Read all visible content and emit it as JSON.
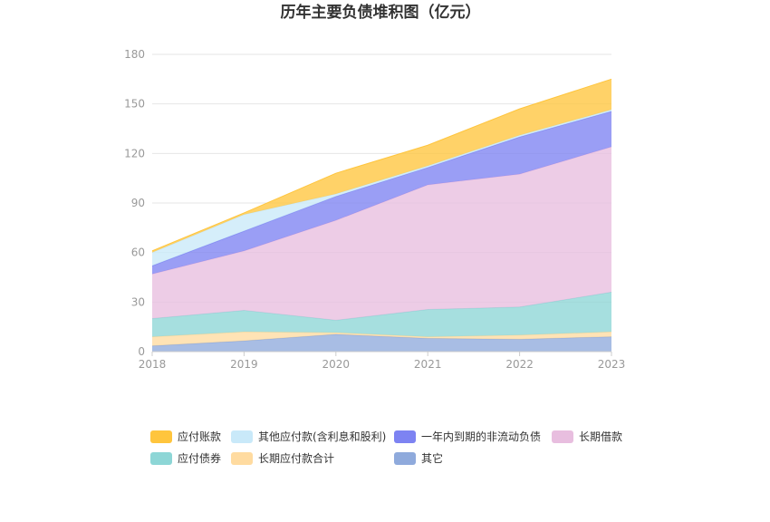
{
  "chart_data": {
    "type": "area",
    "stacked": true,
    "title": "历年主要负债堆积图（亿元）",
    "categories": [
      "2018",
      "2019",
      "2020",
      "2021",
      "2022",
      "2023"
    ],
    "ylim": [
      0,
      180
    ],
    "yticks": [
      "0",
      "30",
      "60",
      "90",
      "120",
      "150",
      "180"
    ],
    "grid": true,
    "legend_position": "bottom",
    "series": [
      {
        "name": "其它",
        "color": "#8faadc",
        "values": [
          3.5,
          6.5,
          10.5,
          8.0,
          7.5,
          9.0
        ]
      },
      {
        "name": "长期应付款合计",
        "color": "#ffdba0",
        "values": [
          5.5,
          5.5,
          1.0,
          1.0,
          2.5,
          3.0
        ]
      },
      {
        "name": "应付债券",
        "color": "#8dd6d6",
        "values": [
          11.0,
          13.0,
          7.5,
          16.5,
          17.0,
          24.0
        ]
      },
      {
        "name": "长期借款",
        "color": "#e8bedf",
        "values": [
          27.0,
          36.0,
          60.5,
          75.5,
          80.5,
          88.0
        ]
      },
      {
        "name": "一年内到期的非流动负债",
        "color": "#7d83f2",
        "values": [
          5.0,
          12.0,
          14.5,
          10.5,
          22.5,
          21.5
        ]
      },
      {
        "name": "其他应付款(含利息和股利)",
        "color": "#c9e9f9",
        "values": [
          8.0,
          10.0,
          1.5,
          1.0,
          1.0,
          1.0
        ]
      },
      {
        "name": "应付账款",
        "color": "#ffc53d",
        "values": [
          1.0,
          1.0,
          12.5,
          12.5,
          16.0,
          18.5
        ]
      }
    ],
    "legend_order": [
      "应付账款",
      "其他应付款(含利息和股利)",
      "一年内到期的非流动负债",
      "长期借款",
      "应付债券",
      "长期应付款合计",
      "其它"
    ]
  }
}
